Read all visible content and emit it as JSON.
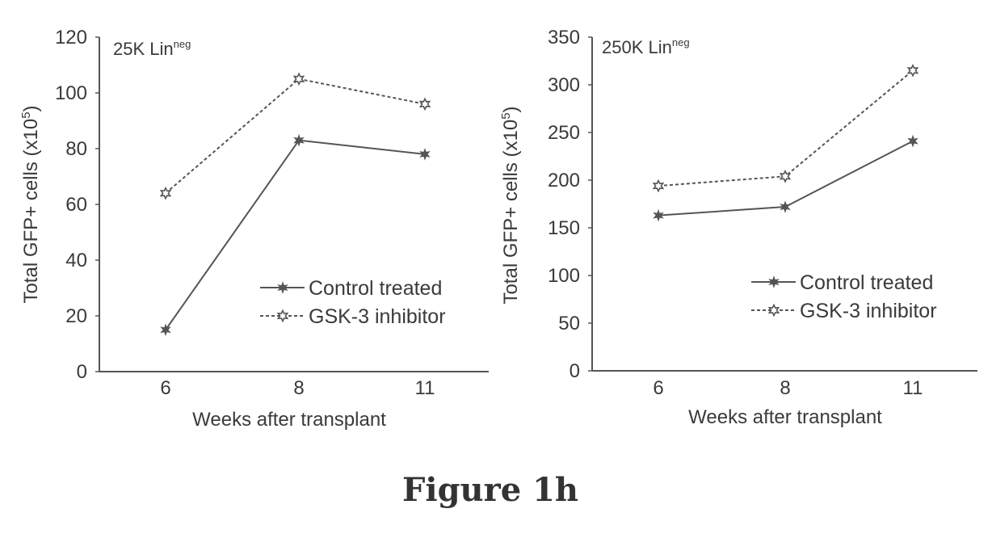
{
  "figure_caption": "Figure 1h",
  "chart_data": [
    {
      "type": "line",
      "inset_label": "25K Lin",
      "inset_label_sup": "neg",
      "ylabel": "Total GFP+ cells (x10",
      "ylabel_sup": "5",
      "ylabel_close": ")",
      "xlabel": "Weeks after transplant",
      "categories": [
        "6",
        "8",
        "11"
      ],
      "ylim": [
        0,
        120
      ],
      "yticks": [
        "0",
        "20",
        "40",
        "60",
        "80",
        "100",
        "120"
      ],
      "series": [
        {
          "name": "Control treated",
          "values": [
            15,
            83,
            78
          ],
          "marker": "filled-star",
          "line": "solid",
          "color": "#555555"
        },
        {
          "name": "GSK-3 inhibitor",
          "values": [
            64,
            105,
            96
          ],
          "marker": "open-star",
          "line": "dashed",
          "color": "#555555"
        }
      ],
      "legend_position": "lower-right",
      "grid": false
    },
    {
      "type": "line",
      "inset_label": "250K Lin",
      "inset_label_sup": "neg",
      "ylabel": "Total GFP+ cells (x10",
      "ylabel_sup": "5",
      "ylabel_close": ")",
      "xlabel": "Weeks after transplant",
      "categories": [
        "6",
        "8",
        "11"
      ],
      "ylim": [
        0,
        350
      ],
      "yticks": [
        "0",
        "50",
        "100",
        "150",
        "200",
        "250",
        "300",
        "350"
      ],
      "series": [
        {
          "name": "Control treated",
          "values": [
            163,
            172,
            241
          ],
          "marker": "filled-star",
          "line": "solid",
          "color": "#555555"
        },
        {
          "name": "GSK-3 inhibitor",
          "values": [
            194,
            204,
            315
          ],
          "marker": "open-star",
          "line": "dashed",
          "color": "#555555"
        }
      ],
      "legend_position": "lower-right",
      "grid": false
    }
  ]
}
